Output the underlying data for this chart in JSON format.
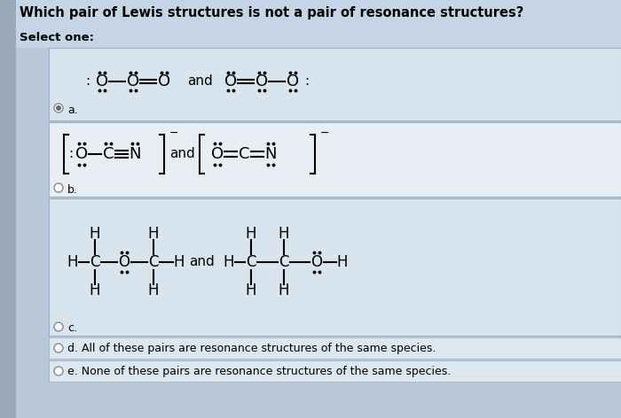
{
  "title": "Which pair of Lewis structures is not a pair of resonance structures?",
  "subtitle": "Select one:",
  "bg_outer": "#b8c8d8",
  "bg_inner": "#c8d8e8",
  "bg_option_a": "#d8e4ee",
  "bg_option_b": "#e8eef4",
  "bg_option_c": "#d8e4ee",
  "bg_option_de": "#dde7f0",
  "options": {
    "d_label": "d. All of these pairs are resonance structures of the same species.",
    "e_label": "e. None of these pairs are resonance structures of the same species."
  },
  "fig_w": 7.0,
  "fig_h": 4.72,
  "dpi": 100
}
